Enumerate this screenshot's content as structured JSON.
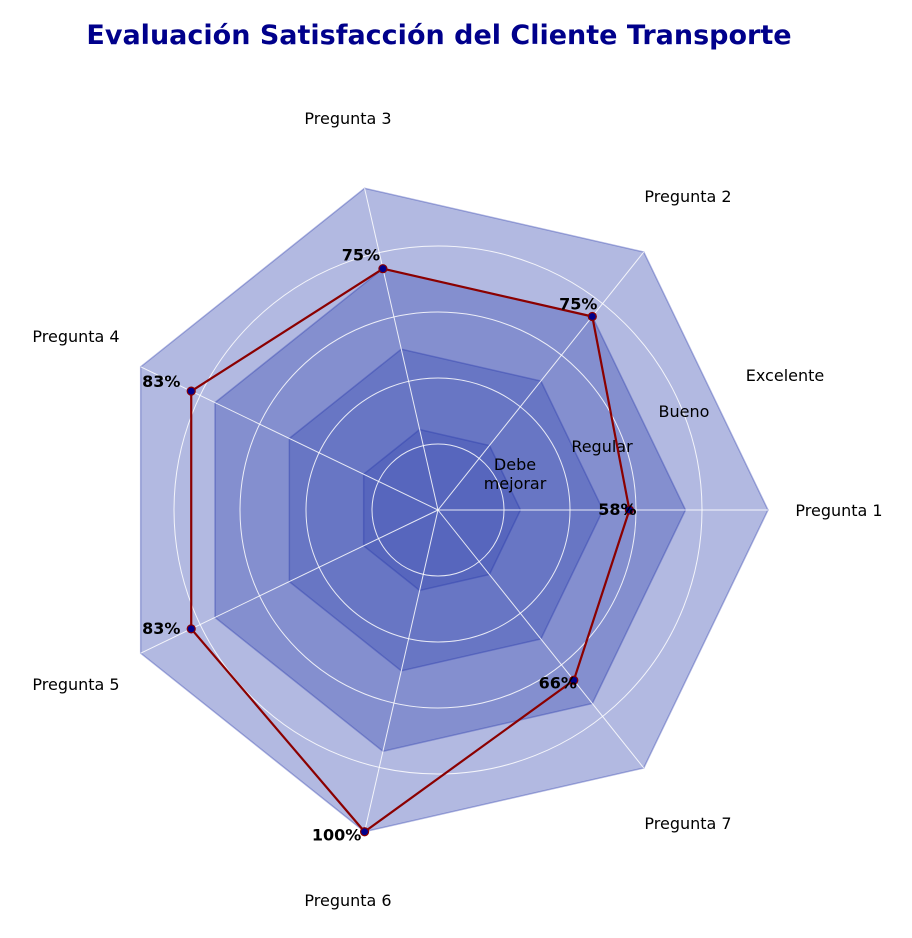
{
  "chart_data": {
    "type": "radar",
    "title": "Evaluación Satisfacción del Cliente Transporte",
    "categories": [
      "Pregunta 1",
      "Pregunta 2",
      "Pregunta 3",
      "Pregunta 4",
      "Pregunta 5",
      "Pregunta 6",
      "Pregunta 7"
    ],
    "values": [
      58,
      75,
      75,
      83,
      83,
      100,
      66
    ],
    "value_labels": [
      "58%",
      "75%",
      "75%",
      "83%",
      "83%",
      "100%",
      "66%"
    ],
    "ylim": [
      0,
      100
    ],
    "bands": [
      {
        "label": "Debe mejorar",
        "outer": 25,
        "color": "#3f51b5"
      },
      {
        "label": "Regular",
        "outer": 50,
        "color": "#3f51b5"
      },
      {
        "label": "Bueno",
        "outer": 75,
        "color": "#3f51b5"
      },
      {
        "label": "Excelente",
        "outer": 100,
        "color": "#3f51b5"
      }
    ],
    "grid": true,
    "colors": {
      "band_fill": "#3f51b5",
      "band_edge": "#2233aa",
      "line": "#8b0000",
      "marker": "#00008b",
      "title": "#00008b",
      "grid": "#ffffff"
    }
  }
}
